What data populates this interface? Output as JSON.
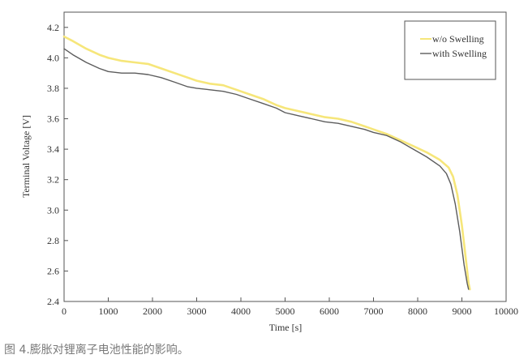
{
  "caption": "图 4.膨胀对锂离子电池性能的影响。",
  "colors": {
    "wo_swelling": "#f6e67a",
    "with_swelling": "#5c5c5c",
    "axis": "#555555",
    "background": "#ffffff"
  },
  "chart_data": {
    "type": "line",
    "title": "",
    "xlabel": "Time [s]",
    "ylabel": "Terminal Voltage [V]",
    "xlim": [
      0,
      10000
    ],
    "ylim": [
      2.4,
      4.3
    ],
    "x_ticks": [
      0,
      1000,
      2000,
      3000,
      4000,
      5000,
      6000,
      7000,
      8000,
      9000,
      10000
    ],
    "y_ticks": [
      2.4,
      2.6,
      2.8,
      3.0,
      3.2,
      3.4,
      3.6,
      3.8,
      4.0,
      4.2
    ],
    "x_tick_labels": [
      "0",
      "1000",
      "2000",
      "3000",
      "4000",
      "5000",
      "6000",
      "7000",
      "8000",
      "9000",
      "10000"
    ],
    "y_tick_labels": [
      "2.4",
      "2.6",
      "2.8",
      "3.0",
      "3.2",
      "3.4",
      "3.6",
      "3.8",
      "4.0",
      "4.2"
    ],
    "grid": false,
    "legend_position": "top-right",
    "series": [
      {
        "name": "w/o Swelling",
        "color": "#f6e67a",
        "x": [
          0,
          200,
          500,
          800,
          1000,
          1300,
          1600,
          1900,
          2200,
          2500,
          2800,
          3000,
          3300,
          3600,
          3900,
          4200,
          4500,
          4800,
          5000,
          5300,
          5600,
          5900,
          6200,
          6500,
          6800,
          7000,
          7300,
          7600,
          7900,
          8200,
          8500,
          8700,
          8800,
          8900,
          9000,
          9100,
          9150,
          9180
        ],
        "y": [
          4.14,
          4.11,
          4.06,
          4.02,
          4.0,
          3.98,
          3.97,
          3.96,
          3.93,
          3.9,
          3.87,
          3.85,
          3.83,
          3.82,
          3.79,
          3.76,
          3.73,
          3.69,
          3.67,
          3.65,
          3.63,
          3.61,
          3.6,
          3.58,
          3.55,
          3.53,
          3.5,
          3.46,
          3.42,
          3.38,
          3.33,
          3.28,
          3.22,
          3.1,
          2.9,
          2.65,
          2.52,
          2.48
        ]
      },
      {
        "name": "with Swelling",
        "color": "#5c5c5c",
        "x": [
          0,
          200,
          500,
          800,
          1000,
          1300,
          1600,
          1900,
          2200,
          2500,
          2800,
          3000,
          3300,
          3600,
          3900,
          4200,
          4500,
          4800,
          5000,
          5300,
          5600,
          5900,
          6200,
          6500,
          6800,
          7000,
          7300,
          7600,
          7900,
          8200,
          8500,
          8650,
          8750,
          8850,
          8950,
          9050,
          9120,
          9150
        ],
        "y": [
          4.06,
          4.02,
          3.97,
          3.93,
          3.91,
          3.9,
          3.9,
          3.89,
          3.87,
          3.84,
          3.81,
          3.8,
          3.79,
          3.78,
          3.76,
          3.73,
          3.7,
          3.67,
          3.64,
          3.62,
          3.6,
          3.58,
          3.57,
          3.55,
          3.53,
          3.51,
          3.49,
          3.45,
          3.4,
          3.35,
          3.29,
          3.24,
          3.17,
          3.04,
          2.86,
          2.64,
          2.52,
          2.48
        ]
      }
    ]
  }
}
